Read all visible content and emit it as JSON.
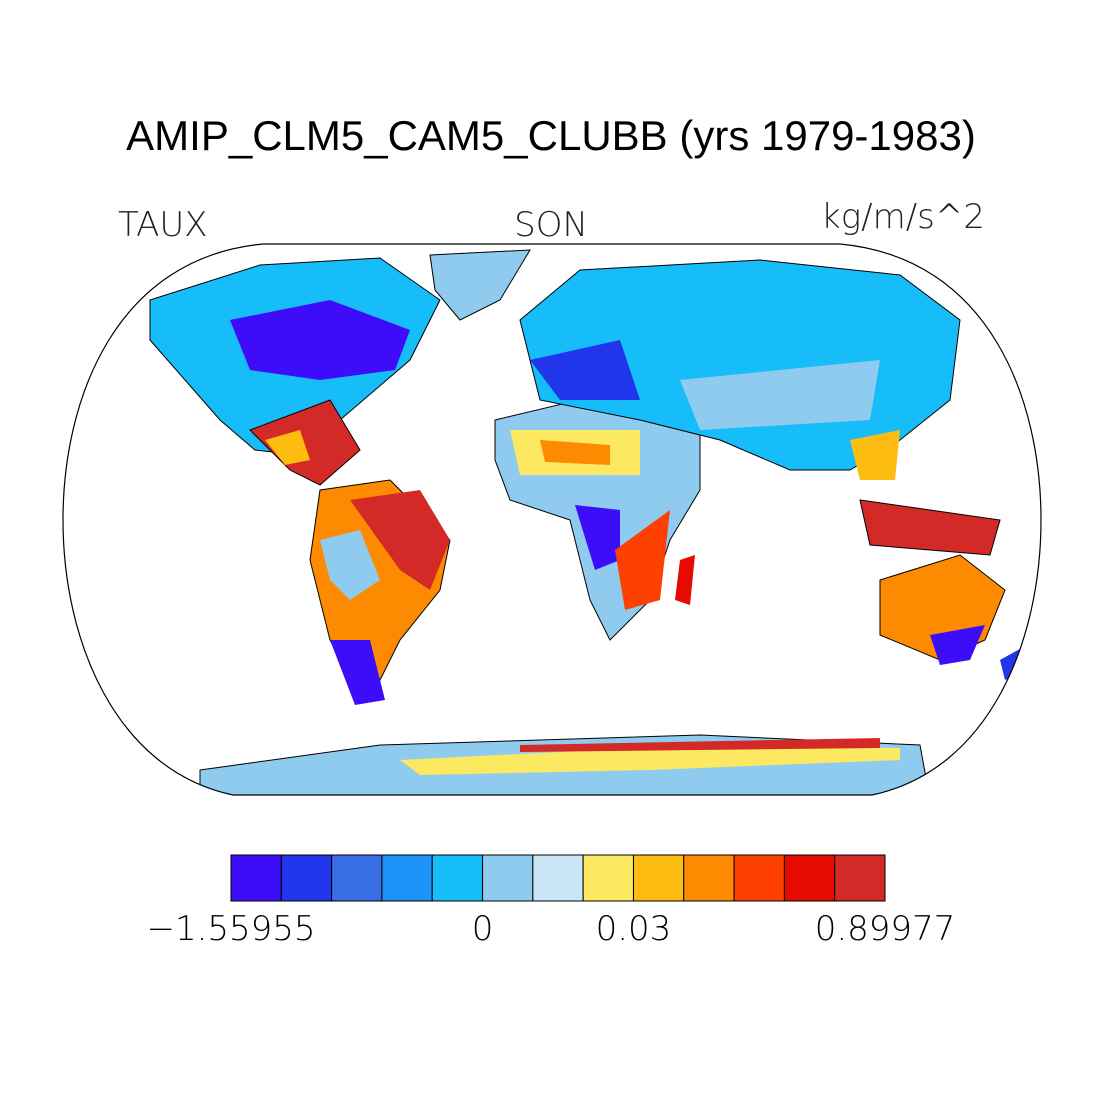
{
  "title": "AMIP_CLM5_CAM5_CLUBB (yrs 1979-1983)",
  "left_label": "TAUX",
  "center_label": "SON",
  "right_label": "kg/m/s^2",
  "colorbar": {
    "colors": [
      "#3d0dfa",
      "#2135ea",
      "#3a6ee4",
      "#1e93f7",
      "#17bdf9",
      "#8ecbef",
      "#c8e6f6",
      "#fde961",
      "#fcbc12",
      "#fd8a00",
      "#fe4101",
      "#e50b00",
      "#d32a28"
    ],
    "ticks": [
      {
        "value": -1.55955,
        "label": "−1.55955"
      },
      null,
      null,
      null,
      null,
      0,
      null,
      null,
      0.03,
      null,
      null,
      null,
      null,
      0.89977
    ]
  }
}
